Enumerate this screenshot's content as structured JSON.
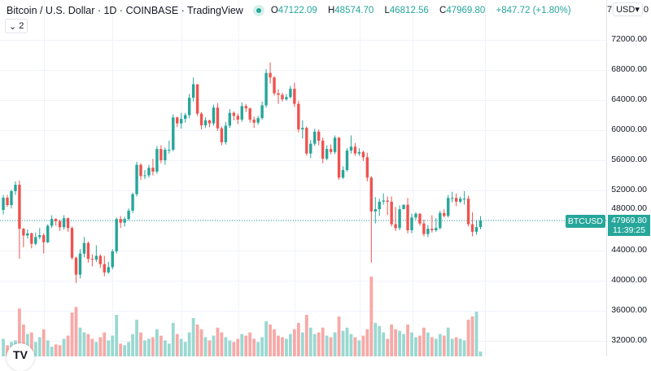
{
  "header": {
    "title": "Bitcoin / U.S. Dollar · 1D · COINBASE · TradingView",
    "ohlc": {
      "o_label": "O",
      "o": "47122.09",
      "h_label": "H",
      "h": "48574.70",
      "l_label": "L",
      "l": "46812.56",
      "c_label": "C",
      "c": "47969.80",
      "change": "+847.72 (+1.80%)"
    },
    "status_color": "#26a69a",
    "indicators_toggle": "2"
  },
  "currency": {
    "left": "7",
    "label": "USD",
    "right": "0"
  },
  "price_axis": {
    "labels": [
      "72000.00",
      "68000.00",
      "64000.00",
      "60000.00",
      "56000.00",
      "52000.00",
      "48000.00",
      "44000.00",
      "40000.00",
      "36000.00",
      "32000.00"
    ]
  },
  "last_price": {
    "symbol": "BTCUSD",
    "price": "47969.80",
    "countdown": "11:39:25"
  },
  "colors": {
    "up": "#26a69a",
    "down": "#ef5350",
    "up_volume": "#9ad8d1",
    "down_volume": "#f7a9a7"
  },
  "logo": "TV",
  "chart_data": {
    "type": "candlestick",
    "ylim": [
      30000,
      76000
    ],
    "closes": [
      51030,
      50050,
      51900,
      52750,
      46900,
      46000,
      46300,
      44900,
      45800,
      46050,
      45100,
      47300,
      48200,
      47900,
      47100,
      48300,
      47000,
      43050,
      40800,
      43600,
      45000,
      42900,
      42800,
      43300,
      42200,
      41100,
      41800,
      43900,
      48200,
      47700,
      48200,
      49300,
      51500,
      55400,
      53900,
      54000,
      55000,
      54500,
      57500,
      56000,
      57400,
      57400,
      61700,
      60900,
      61500,
      62000,
      64300,
      66100,
      62200,
      60650,
      61300,
      60900,
      63000,
      60250,
      58400,
      60600,
      62300,
      61900,
      61400,
      63200,
      62900,
      61400,
      61000,
      61600,
      63300,
      67600,
      67000,
      64900,
      64700,
      64100,
      64400,
      65500,
      63500,
      60100,
      60300,
      56900,
      58200,
      59800,
      58600,
      56200,
      57500,
      57100,
      59000,
      53700,
      54700,
      57300,
      57800,
      56900,
      57100,
      56400,
      53700,
      49200,
      49500,
      50500,
      50650,
      50500,
      47500,
      47000,
      49500,
      50100,
      46700,
      48400,
      48900,
      47600,
      46200,
      46900,
      46700,
      47000,
      49000,
      48600,
      51000,
      51000,
      50500,
      50900,
      50900,
      47500,
      46500,
      47122.09,
      47969.8
    ],
    "first_open": 49400,
    "highs": [
      51400,
      51400,
      52100,
      53200,
      53300,
      47000,
      46800,
      46400,
      46400,
      47000,
      46300,
      47500,
      48700,
      48300,
      48100,
      48700,
      48400,
      47200,
      43200,
      44200,
      45800,
      45200,
      43500,
      44700,
      43500,
      43300,
      42500,
      44200,
      48400,
      48600,
      48500,
      49600,
      51700,
      55800,
      55600,
      54700,
      55400,
      56200,
      57900,
      58000,
      57700,
      58600,
      62100,
      61800,
      62300,
      62300,
      64800,
      67000,
      66100,
      62400,
      61700,
      61400,
      63400,
      63600,
      60500,
      61100,
      62800,
      62500,
      62200,
      63700,
      63500,
      63000,
      61800,
      61900,
      63800,
      68100,
      69000,
      67200,
      65400,
      65000,
      64800,
      65900,
      66300,
      63900,
      61300,
      60500,
      58700,
      60200,
      60100,
      59000,
      58000,
      58100,
      59300,
      59100,
      55200,
      57600,
      59300,
      58300,
      57600,
      57300,
      57000,
      53900,
      51100,
      50900,
      51600,
      51200,
      51200,
      49800,
      50000,
      50100,
      51000,
      48900,
      49100,
      49000,
      48100,
      47400,
      48700,
      48300,
      49300,
      49500,
      51400,
      51800,
      51600,
      51200,
      51900,
      51300,
      49100,
      48000,
      48574.7
    ],
    "lows": [
      48800,
      49800,
      49600,
      51400,
      42900,
      44450,
      45600,
      44300,
      44700,
      45500,
      43600,
      45000,
      47000,
      47300,
      46600,
      46800,
      46500,
      42800,
      39700,
      40300,
      43100,
      42400,
      41900,
      42500,
      41700,
      40600,
      40900,
      41500,
      43600,
      47000,
      47200,
      48000,
      49000,
      51200,
      53400,
      53500,
      53700,
      54000,
      54200,
      55600,
      55400,
      56900,
      57200,
      60400,
      60200,
      61000,
      61600,
      63800,
      61900,
      60100,
      60300,
      60400,
      60600,
      59900,
      58000,
      58100,
      60300,
      61300,
      60800,
      61100,
      62400,
      61000,
      60300,
      60700,
      61400,
      63000,
      66200,
      64600,
      63500,
      63800,
      63900,
      64200,
      63100,
      59700,
      58900,
      56600,
      56300,
      57900,
      58000,
      55600,
      56000,
      56800,
      56800,
      53400,
      53500,
      54500,
      56900,
      56600,
      56600,
      55900,
      53200,
      42400,
      47600,
      48600,
      50100,
      48700,
      47200,
      46600,
      46700,
      49700,
      46300,
      46300,
      48100,
      47300,
      45900,
      45800,
      46400,
      46500,
      46800,
      48400,
      48400,
      50400,
      49900,
      50300,
      50100,
      47200,
      45900,
      46100,
      46812.56
    ],
    "volume": [
      22,
      14,
      18,
      20,
      60,
      40,
      28,
      30,
      18,
      24,
      34,
      20,
      12,
      15,
      14,
      22,
      26,
      55,
      62,
      36,
      30,
      28,
      22,
      18,
      24,
      30,
      20,
      26,
      52,
      16,
      14,
      18,
      28,
      46,
      30,
      20,
      22,
      24,
      34,
      26,
      20,
      16,
      42,
      28,
      22,
      18,
      30,
      48,
      40,
      34,
      24,
      20,
      26,
      36,
      30,
      24,
      20,
      18,
      22,
      28,
      26,
      30,
      22,
      18,
      24,
      44,
      40,
      34,
      26,
      24,
      22,
      28,
      34,
      42,
      30,
      52,
      36,
      28,
      30,
      36,
      26,
      24,
      30,
      50,
      32,
      36,
      28,
      24,
      20,
      26,
      34,
      100,
      42,
      38,
      30,
      22,
      40,
      34,
      32,
      28,
      40,
      30,
      24,
      26,
      36,
      30,
      24,
      22,
      28,
      26,
      36,
      22,
      24,
      22,
      20,
      46,
      50,
      56,
      6
    ]
  }
}
